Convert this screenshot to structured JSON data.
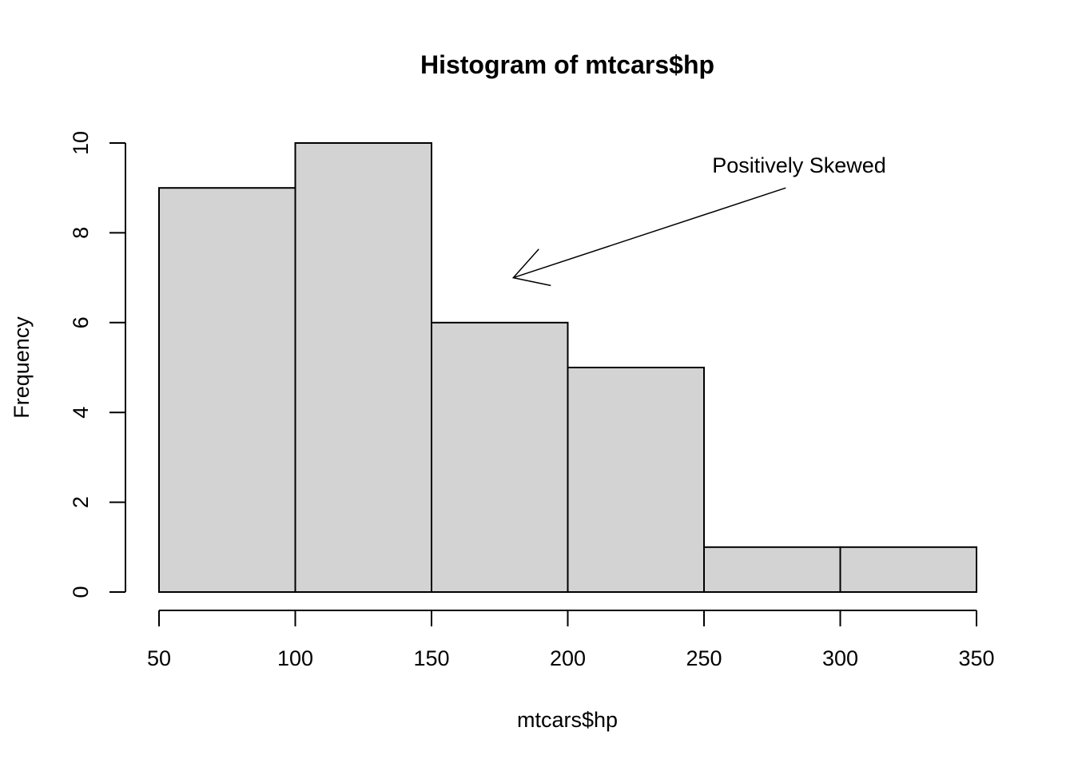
{
  "chart_data": {
    "type": "bar",
    "title": "Histogram of mtcars$hp",
    "xlabel": "mtcars$hp",
    "ylabel": "Frequency",
    "bins": [
      {
        "from": 50,
        "to": 100,
        "count": 9
      },
      {
        "from": 100,
        "to": 150,
        "count": 10
      },
      {
        "from": 150,
        "to": 200,
        "count": 6
      },
      {
        "from": 200,
        "to": 250,
        "count": 5
      },
      {
        "from": 250,
        "to": 300,
        "count": 1
      },
      {
        "from": 300,
        "to": 350,
        "count": 1
      }
    ],
    "xlim": [
      50,
      350
    ],
    "ylim": [
      0,
      10
    ],
    "x_ticks": [
      50,
      100,
      150,
      200,
      250,
      300,
      350
    ],
    "y_ticks": [
      0,
      2,
      4,
      6,
      8,
      10
    ],
    "bar_color": "#d3d3d3",
    "grid": false,
    "annotation": {
      "text": "Positively Skewed",
      "arrow_from": {
        "x": 280,
        "y": 9
      },
      "arrow_to": {
        "x": 180,
        "y": 7
      }
    }
  }
}
